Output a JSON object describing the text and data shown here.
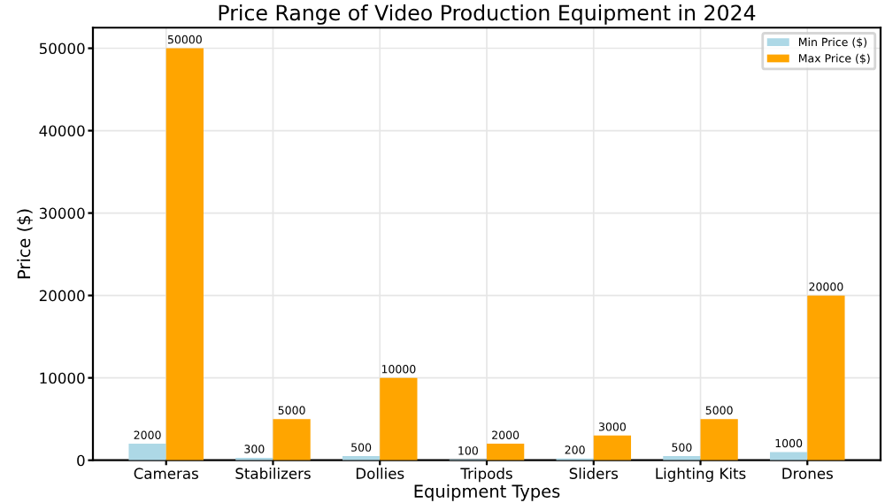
{
  "chart_data": {
    "type": "bar",
    "title": "Price Range of Video Production Equipment in 2024",
    "xlabel": "Equipment Types",
    "ylabel": "Price ($)",
    "categories": [
      "Cameras",
      "Stabilizers",
      "Dollies",
      "Tripods",
      "Sliders",
      "Lighting Kits",
      "Drones"
    ],
    "series": [
      {
        "name": "Min Price ($)",
        "color": "#add8e6",
        "values": [
          2000,
          300,
          500,
          100,
          200,
          500,
          1000
        ]
      },
      {
        "name": "Max Price ($)",
        "color": "#ffa500",
        "values": [
          50000,
          5000,
          10000,
          2000,
          3000,
          5000,
          20000
        ]
      }
    ],
    "ylim": [
      0,
      52500
    ],
    "yticks": [
      0,
      10000,
      20000,
      30000,
      40000,
      50000
    ],
    "grid": true,
    "legend": "top right",
    "data_labels": true
  }
}
